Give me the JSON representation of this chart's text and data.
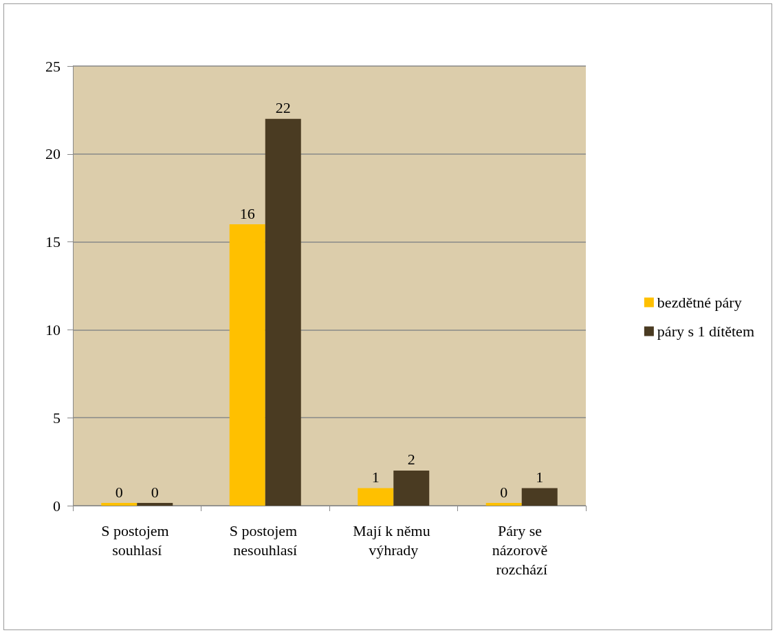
{
  "chart_data": {
    "type": "bar",
    "categories": [
      "S postojem souhlasí",
      "S postojem nesouhlasí",
      "Mají k němu výhrady",
      "Páry se názorově rozchází"
    ],
    "series": [
      {
        "name": "bezdětné páry",
        "color": "#ffc000",
        "values": [
          0,
          16,
          1,
          0
        ]
      },
      {
        "name": "páry s 1 dítětem",
        "color": "#4a3b22",
        "values": [
          0,
          22,
          2,
          1
        ]
      }
    ],
    "ylim": [
      0,
      25
    ],
    "yticks": [
      0,
      5,
      10,
      15,
      20,
      25
    ],
    "grid": "y",
    "legend": "right",
    "data_labels": true
  }
}
